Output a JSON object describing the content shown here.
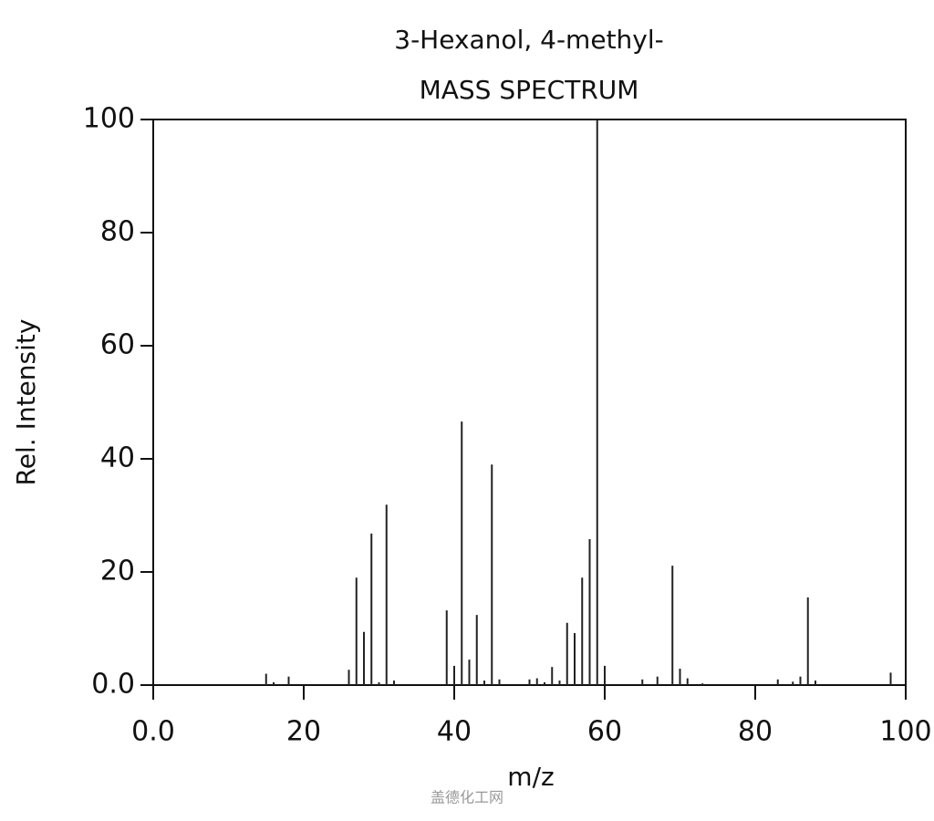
{
  "chart_data": {
    "type": "stem",
    "title": "3-Hexanol, 4-methyl-",
    "subtitle": "MASS SPECTRUM",
    "x_label": "m/z",
    "y_label": "Rel. Intensity",
    "watermark": "盖德化工网",
    "color": "#222222",
    "x": [
      15,
      16,
      18,
      26,
      27,
      28,
      29,
      30,
      31,
      32,
      39,
      40,
      41,
      42,
      43,
      44,
      45,
      46,
      50,
      51,
      52,
      53,
      54,
      55,
      56,
      57,
      58,
      59,
      60,
      65,
      67,
      69,
      70,
      71,
      73,
      83,
      85,
      86,
      87,
      88,
      98
    ],
    "values": [
      2,
      0.5,
      1.5,
      2.7,
      19,
      9.4,
      26.8,
      0.5,
      31.9,
      0.8,
      13.2,
      3.4,
      46.6,
      4.5,
      12.4,
      0.8,
      39,
      1,
      1,
      1.2,
      0.5,
      3.2,
      0.8,
      11,
      9.2,
      19,
      25.8,
      100,
      3.4,
      1,
      1.5,
      21.1,
      2.9,
      1.2,
      0.3,
      1,
      0.6,
      1.5,
      15.5,
      0.8,
      2.2
    ],
    "xlim": [
      0,
      100
    ],
    "ylim": [
      0,
      100
    ],
    "xticks": [
      {
        "value": 0,
        "label": "0.0"
      },
      20,
      40,
      60,
      80,
      100
    ],
    "yticks": [
      {
        "value": 0,
        "label": "0.0"
      },
      20,
      40,
      60,
      80,
      100
    ]
  }
}
